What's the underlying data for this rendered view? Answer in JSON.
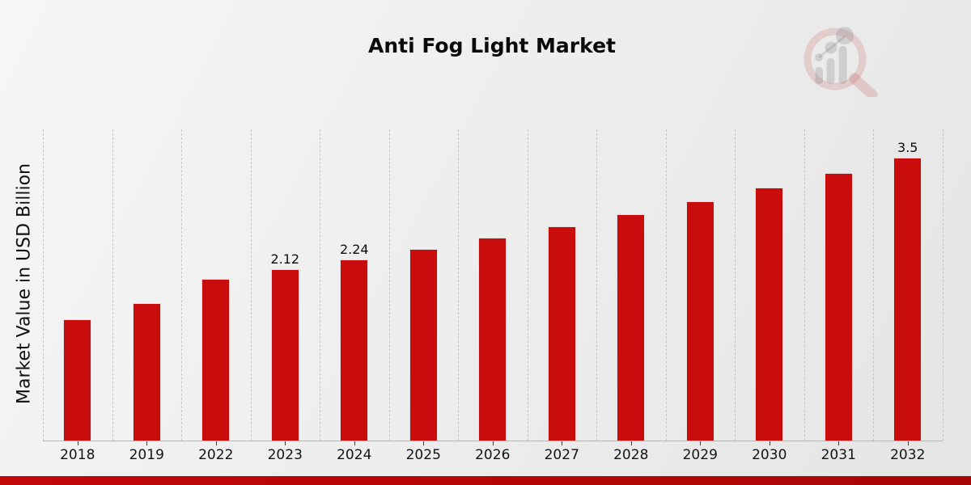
{
  "chart_data": {
    "type": "bar",
    "title": "Anti Fog Light Market",
    "ylabel": "Market Value in USD Billion",
    "xlabel": "",
    "categories": [
      "2018",
      "2019",
      "2022",
      "2023",
      "2024",
      "2025",
      "2026",
      "2027",
      "2028",
      "2029",
      "2030",
      "2031",
      "2032"
    ],
    "values": [
      1.5,
      1.7,
      2.0,
      2.12,
      2.24,
      2.37,
      2.51,
      2.65,
      2.8,
      2.96,
      3.13,
      3.31,
      3.5
    ],
    "data_labels": [
      "",
      "",
      "",
      "2.12",
      "2.24",
      "",
      "",
      "",
      "",
      "",
      "",
      "",
      "3.5"
    ],
    "ylim": [
      0,
      3.85
    ],
    "grid": "vertical-dashed-at-category-boundaries",
    "legend": "none",
    "bar_color": "#c90c0c",
    "gridline_color": "#c6c6c6"
  },
  "branding": {
    "logo_icon": "magnifier-bar-chart-logo",
    "accent_strip_color": "#b30606"
  }
}
